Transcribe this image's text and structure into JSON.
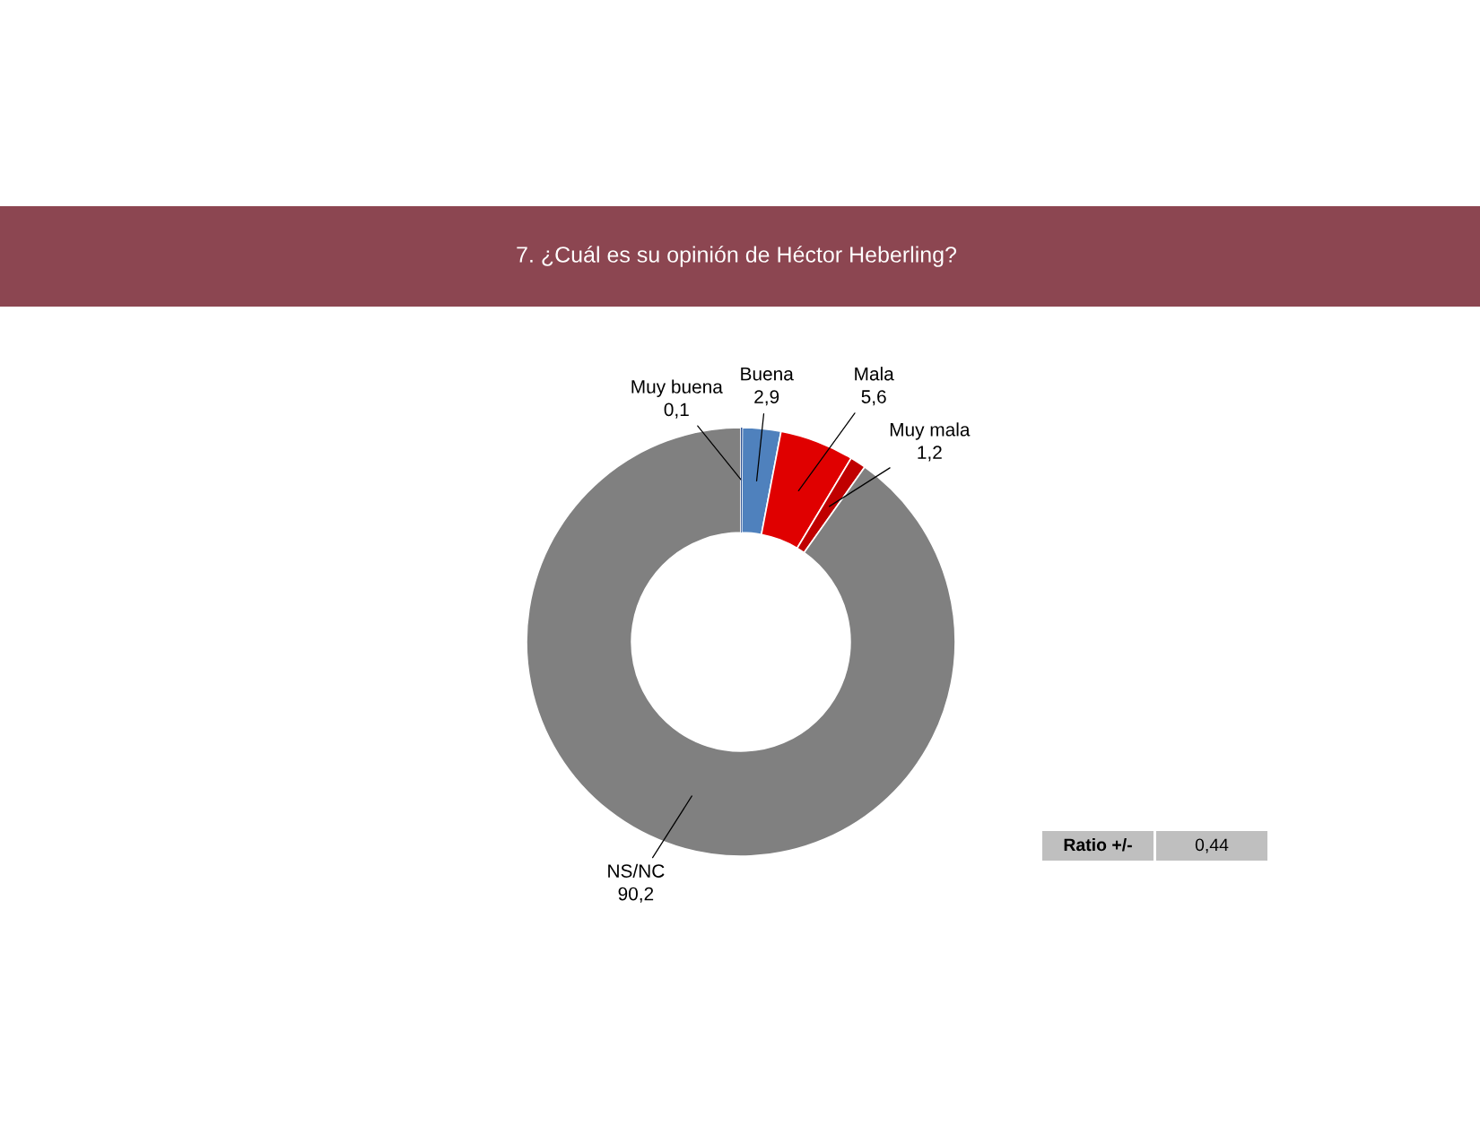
{
  "chart_data": {
    "type": "donut",
    "title": "7. ¿Cuál es su opinión de Héctor Heberling?",
    "categories": [
      "Muy buena",
      "Buena",
      "Mala",
      "Muy mala",
      "NS/NC"
    ],
    "values": [
      0.1,
      2.9,
      5.6,
      1.2,
      90.2
    ],
    "colors": [
      "#2f5597",
      "#4f81bd",
      "#e00000",
      "#c00000",
      "#808080"
    ],
    "value_labels": [
      "0,1",
      "2,9",
      "5,6",
      "1,2",
      "90,2"
    ],
    "annotations": [
      "Ratio +/-",
      "0,44"
    ]
  }
}
